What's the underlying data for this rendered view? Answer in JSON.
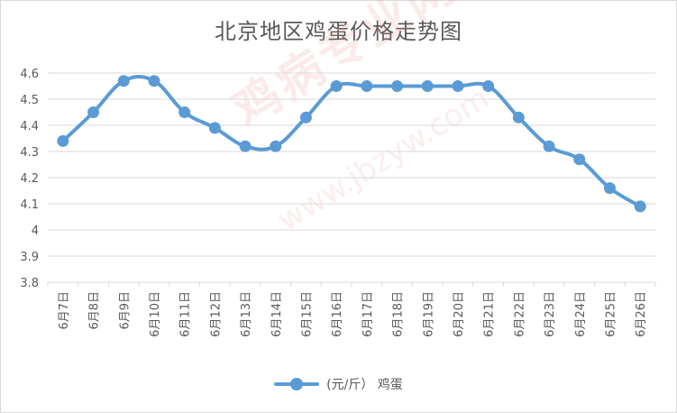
{
  "chart_data": {
    "type": "line",
    "title": "北京地区鸡蛋价格走势图",
    "categories": [
      "6月7日",
      "6月8日",
      "6月9日",
      "6月10日",
      "6月11日",
      "6月12日",
      "6月13日",
      "6月14日",
      "6月15日",
      "6月16日",
      "6月17日",
      "6月18日",
      "6月19日",
      "6月20日",
      "6月21日",
      "6月22日",
      "6月23日",
      "6月24日",
      "6月25日",
      "6月26日"
    ],
    "series": [
      {
        "name": "(元/斤） 鸡蛋",
        "values": [
          4.34,
          4.45,
          4.57,
          4.57,
          4.45,
          4.39,
          4.32,
          4.32,
          4.43,
          4.55,
          4.55,
          4.55,
          4.55,
          4.55,
          4.55,
          4.43,
          4.32,
          4.27,
          4.16,
          4.09
        ]
      }
    ],
    "ylim": [
      3.8,
      4.6
    ],
    "yticks": [
      "3.8",
      "3.9",
      "4",
      "4.1",
      "4.2",
      "4.3",
      "4.4",
      "4.5",
      "4.6"
    ],
    "grid": true,
    "legend_position": "bottom",
    "line_color": "#5b9bd5",
    "gridline_color": "#d9d9d9",
    "watermark": {
      "text": "鸡病专业网",
      "url": "www.jbzyw.com"
    }
  }
}
